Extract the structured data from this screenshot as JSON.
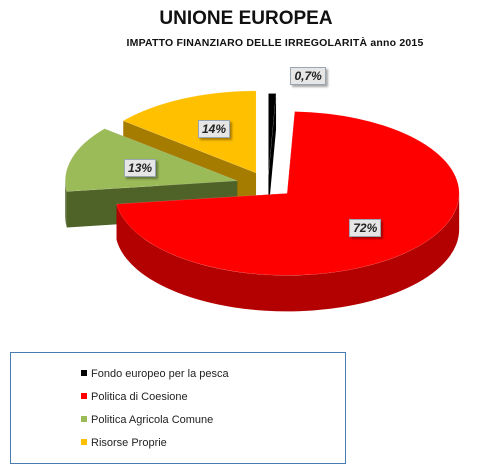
{
  "chart_title": "UNIONE EUROPEA",
  "chart_subtitle": "IMPATTO FINANZIARO DELLE IRREGOLARITÀ anno 2015",
  "chart_data": {
    "type": "pie",
    "title": "UNIONE EUROPEA",
    "subtitle": "IMPATTO FINANZIARO DELLE IRREGOLARITÀ anno 2015",
    "legend_position": "bottom-left",
    "slices": [
      {
        "label": "Fondo europeo per la pesca",
        "value": 0.7,
        "display": "0,7%",
        "color": "#000000",
        "side_color": "#000000"
      },
      {
        "label": "Politica di Coesione",
        "value": 72,
        "display": "72%",
        "color": "#ff0000",
        "side_color": "#b30000"
      },
      {
        "label": "Politica Agricola Comune",
        "value": 13,
        "display": "13%",
        "color": "#9bbb59",
        "side_color": "#4f6228"
      },
      {
        "label": "Risorse Proprie",
        "value": 14,
        "display": "14%",
        "color": "#ffc000",
        "side_color": "#a67c00"
      }
    ]
  }
}
